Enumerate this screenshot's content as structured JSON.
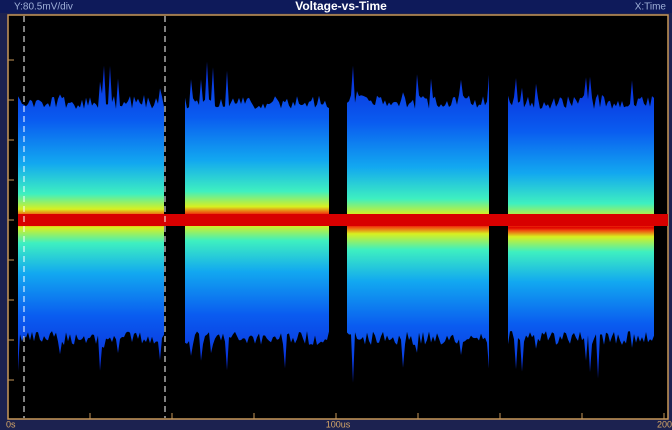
{
  "header": {
    "y_scale": "Y:80.5mV/div",
    "title": "Voltage-vs-Time",
    "x_label": "X:Time"
  },
  "x_axis_labels": [
    "0s",
    "100us",
    "200"
  ]
}
